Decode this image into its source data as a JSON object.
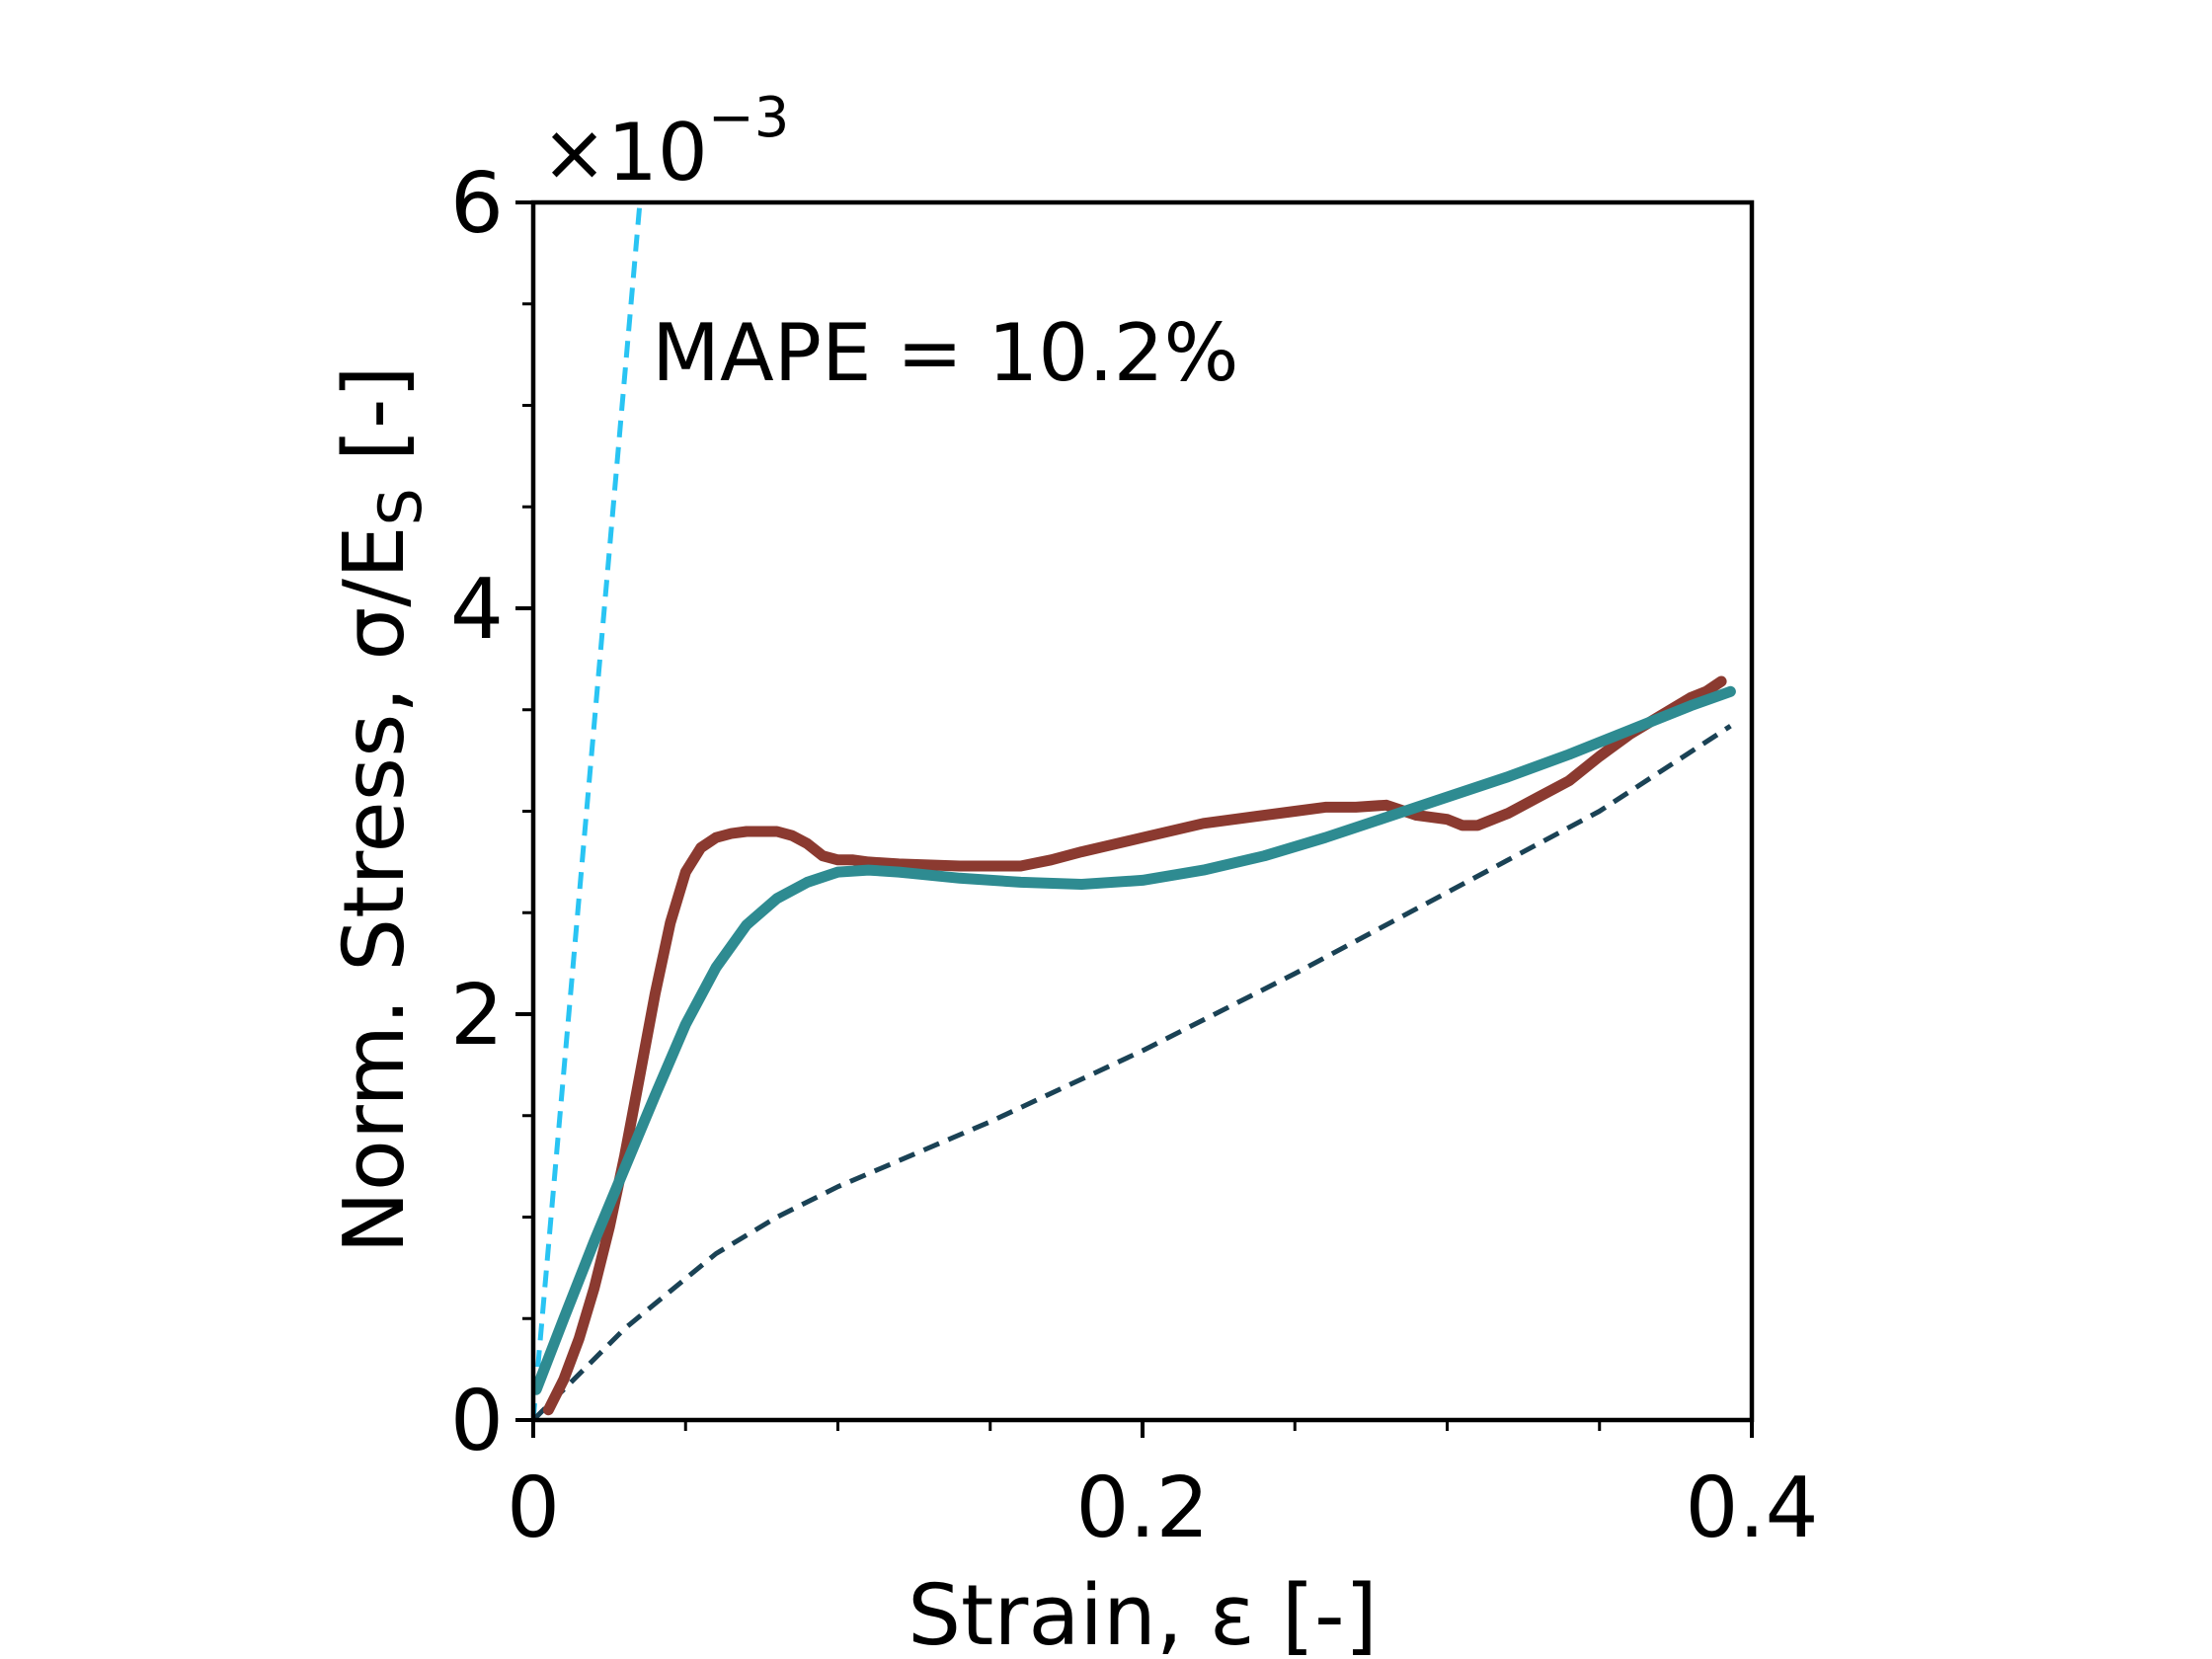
{
  "chart_data": {
    "type": "line",
    "title": "",
    "xlabel": "Strain, ε [-]",
    "ylabel": "Norm. Stress, σ/E",
    "ylabel_subscript": "S",
    "ylabel_suffix": " [-]",
    "y_offset_text": "×10",
    "y_offset_exponent": "−3",
    "xlim": [
      0,
      0.4
    ],
    "ylim": [
      0,
      6
    ],
    "xticks": [
      0,
      0.2,
      0.4
    ],
    "xtick_labels": [
      "0",
      "0.2",
      "0.4"
    ],
    "yticks": [
      0,
      2,
      4,
      6
    ],
    "ytick_labels": [
      "0",
      "2",
      "4",
      "6"
    ],
    "x_minor_step": 0.05,
    "y_minor_step": 0.5,
    "grid": false,
    "annotation": "MAPE = 10.2%",
    "series": [
      {
        "color": "#29c4f3",
        "style": "dashed",
        "x": [
          0,
          0.035
        ],
        "y": [
          0,
          6.0
        ]
      },
      {
        "color": "#1a4255",
        "style": "dashed",
        "x": [
          0,
          0.03,
          0.06,
          0.08,
          0.1,
          0.15,
          0.2,
          0.25,
          0.3,
          0.35,
          0.393
        ],
        "y": [
          0,
          0.45,
          0.82,
          1.0,
          1.15,
          1.47,
          1.82,
          2.2,
          2.6,
          3.0,
          3.42
        ]
      },
      {
        "color": "#8b3a30",
        "style": "solid",
        "x": [
          0.005,
          0.01,
          0.015,
          0.02,
          0.025,
          0.03,
          0.035,
          0.04,
          0.045,
          0.05,
          0.055,
          0.06,
          0.065,
          0.07,
          0.075,
          0.08,
          0.085,
          0.09,
          0.095,
          0.1,
          0.105,
          0.11,
          0.12,
          0.14,
          0.16,
          0.17,
          0.18,
          0.2,
          0.22,
          0.23,
          0.25,
          0.26,
          0.27,
          0.28,
          0.29,
          0.3,
          0.305,
          0.31,
          0.32,
          0.33,
          0.34,
          0.35,
          0.36,
          0.37,
          0.38,
          0.385,
          0.39
        ],
        "y": [
          0.05,
          0.2,
          0.4,
          0.65,
          0.95,
          1.3,
          1.7,
          2.1,
          2.45,
          2.7,
          2.82,
          2.87,
          2.89,
          2.9,
          2.9,
          2.9,
          2.88,
          2.84,
          2.78,
          2.76,
          2.76,
          2.75,
          2.74,
          2.73,
          2.73,
          2.76,
          2.8,
          2.87,
          2.94,
          2.96,
          3.0,
          3.02,
          3.02,
          3.03,
          2.98,
          2.96,
          2.93,
          2.93,
          2.99,
          3.07,
          3.15,
          3.27,
          3.38,
          3.47,
          3.56,
          3.59,
          3.64
        ]
      },
      {
        "color": "#2e8b91",
        "style": "solid",
        "x": [
          0.001,
          0.01,
          0.02,
          0.03,
          0.04,
          0.05,
          0.06,
          0.07,
          0.08,
          0.09,
          0.1,
          0.11,
          0.12,
          0.14,
          0.16,
          0.18,
          0.2,
          0.22,
          0.24,
          0.26,
          0.28,
          0.3,
          0.32,
          0.34,
          0.36,
          0.38,
          0.393
        ],
        "y": [
          0.15,
          0.5,
          0.88,
          1.24,
          1.6,
          1.95,
          2.23,
          2.44,
          2.57,
          2.65,
          2.7,
          2.71,
          2.7,
          2.67,
          2.65,
          2.64,
          2.66,
          2.71,
          2.78,
          2.87,
          2.97,
          3.07,
          3.17,
          3.28,
          3.4,
          3.52,
          3.59
        ]
      }
    ]
  }
}
